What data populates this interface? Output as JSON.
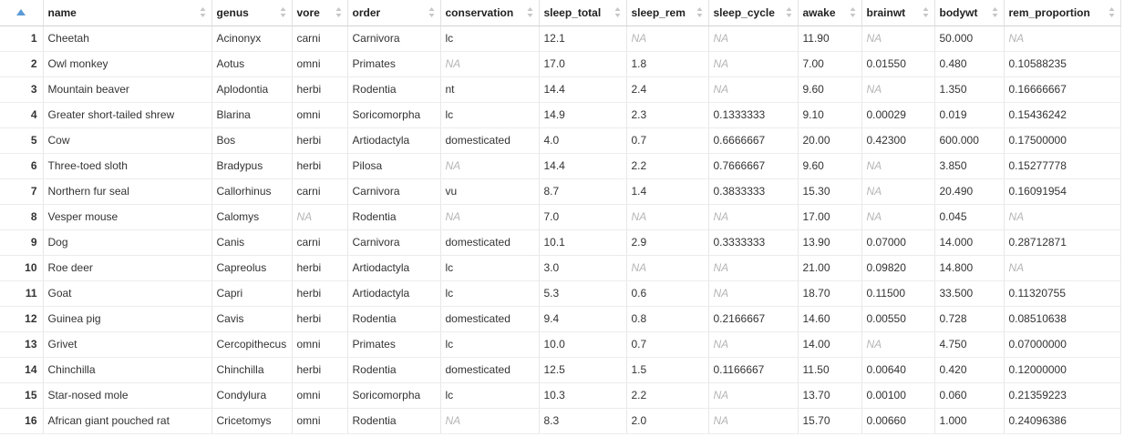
{
  "colors": {
    "accent": "#5b9bd5",
    "na_text": "#b5b5b5",
    "grid_line": "#e8e8e8"
  },
  "columns": [
    {
      "key": "name",
      "label": "name"
    },
    {
      "key": "genus",
      "label": "genus"
    },
    {
      "key": "vore",
      "label": "vore"
    },
    {
      "key": "order",
      "label": "order"
    },
    {
      "key": "conservation",
      "label": "conservation"
    },
    {
      "key": "sleep_total",
      "label": "sleep_total"
    },
    {
      "key": "sleep_rem",
      "label": "sleep_rem"
    },
    {
      "key": "sleep_cycle",
      "label": "sleep_cycle"
    },
    {
      "key": "awake",
      "label": "awake"
    },
    {
      "key": "brainwt",
      "label": "brainwt"
    },
    {
      "key": "bodywt",
      "label": "bodywt"
    },
    {
      "key": "rem_proportion",
      "label": "rem_proportion"
    }
  ],
  "rows": [
    {
      "index": "1",
      "cells": [
        "Cheetah",
        "Acinonyx",
        "carni",
        "Carnivora",
        "lc",
        "12.1",
        "NA",
        "NA",
        "11.90",
        "NA",
        "50.000",
        "NA"
      ]
    },
    {
      "index": "2",
      "cells": [
        "Owl monkey",
        "Aotus",
        "omni",
        "Primates",
        "NA",
        "17.0",
        "1.8",
        "NA",
        "7.00",
        "0.01550",
        "0.480",
        "0.10588235"
      ]
    },
    {
      "index": "3",
      "cells": [
        "Mountain beaver",
        "Aplodontia",
        "herbi",
        "Rodentia",
        "nt",
        "14.4",
        "2.4",
        "NA",
        "9.60",
        "NA",
        "1.350",
        "0.16666667"
      ]
    },
    {
      "index": "4",
      "cells": [
        "Greater short-tailed shrew",
        "Blarina",
        "omni",
        "Soricomorpha",
        "lc",
        "14.9",
        "2.3",
        "0.1333333",
        "9.10",
        "0.00029",
        "0.019",
        "0.15436242"
      ]
    },
    {
      "index": "5",
      "cells": [
        "Cow",
        "Bos",
        "herbi",
        "Artiodactyla",
        "domesticated",
        "4.0",
        "0.7",
        "0.6666667",
        "20.00",
        "0.42300",
        "600.000",
        "0.17500000"
      ]
    },
    {
      "index": "6",
      "cells": [
        "Three-toed sloth",
        "Bradypus",
        "herbi",
        "Pilosa",
        "NA",
        "14.4",
        "2.2",
        "0.7666667",
        "9.60",
        "NA",
        "3.850",
        "0.15277778"
      ]
    },
    {
      "index": "7",
      "cells": [
        "Northern fur seal",
        "Callorhinus",
        "carni",
        "Carnivora",
        "vu",
        "8.7",
        "1.4",
        "0.3833333",
        "15.30",
        "NA",
        "20.490",
        "0.16091954"
      ]
    },
    {
      "index": "8",
      "cells": [
        "Vesper mouse",
        "Calomys",
        "NA",
        "Rodentia",
        "NA",
        "7.0",
        "NA",
        "NA",
        "17.00",
        "NA",
        "0.045",
        "NA"
      ]
    },
    {
      "index": "9",
      "cells": [
        "Dog",
        "Canis",
        "carni",
        "Carnivora",
        "domesticated",
        "10.1",
        "2.9",
        "0.3333333",
        "13.90",
        "0.07000",
        "14.000",
        "0.28712871"
      ]
    },
    {
      "index": "10",
      "cells": [
        "Roe deer",
        "Capreolus",
        "herbi",
        "Artiodactyla",
        "lc",
        "3.0",
        "NA",
        "NA",
        "21.00",
        "0.09820",
        "14.800",
        "NA"
      ]
    },
    {
      "index": "11",
      "cells": [
        "Goat",
        "Capri",
        "herbi",
        "Artiodactyla",
        "lc",
        "5.3",
        "0.6",
        "NA",
        "18.70",
        "0.11500",
        "33.500",
        "0.11320755"
      ]
    },
    {
      "index": "12",
      "cells": [
        "Guinea pig",
        "Cavis",
        "herbi",
        "Rodentia",
        "domesticated",
        "9.4",
        "0.8",
        "0.2166667",
        "14.60",
        "0.00550",
        "0.728",
        "0.08510638"
      ]
    },
    {
      "index": "13",
      "cells": [
        "Grivet",
        "Cercopithecus",
        "omni",
        "Primates",
        "lc",
        "10.0",
        "0.7",
        "NA",
        "14.00",
        "NA",
        "4.750",
        "0.07000000"
      ]
    },
    {
      "index": "14",
      "cells": [
        "Chinchilla",
        "Chinchilla",
        "herbi",
        "Rodentia",
        "domesticated",
        "12.5",
        "1.5",
        "0.1166667",
        "11.50",
        "0.00640",
        "0.420",
        "0.12000000"
      ]
    },
    {
      "index": "15",
      "cells": [
        "Star-nosed mole",
        "Condylura",
        "omni",
        "Soricomorpha",
        "lc",
        "10.3",
        "2.2",
        "NA",
        "13.70",
        "0.00100",
        "0.060",
        "0.21359223"
      ]
    },
    {
      "index": "16",
      "cells": [
        "African giant pouched rat",
        "Cricetomys",
        "omni",
        "Rodentia",
        "NA",
        "8.3",
        "2.0",
        "NA",
        "15.70",
        "0.00660",
        "1.000",
        "0.24096386"
      ]
    }
  ]
}
